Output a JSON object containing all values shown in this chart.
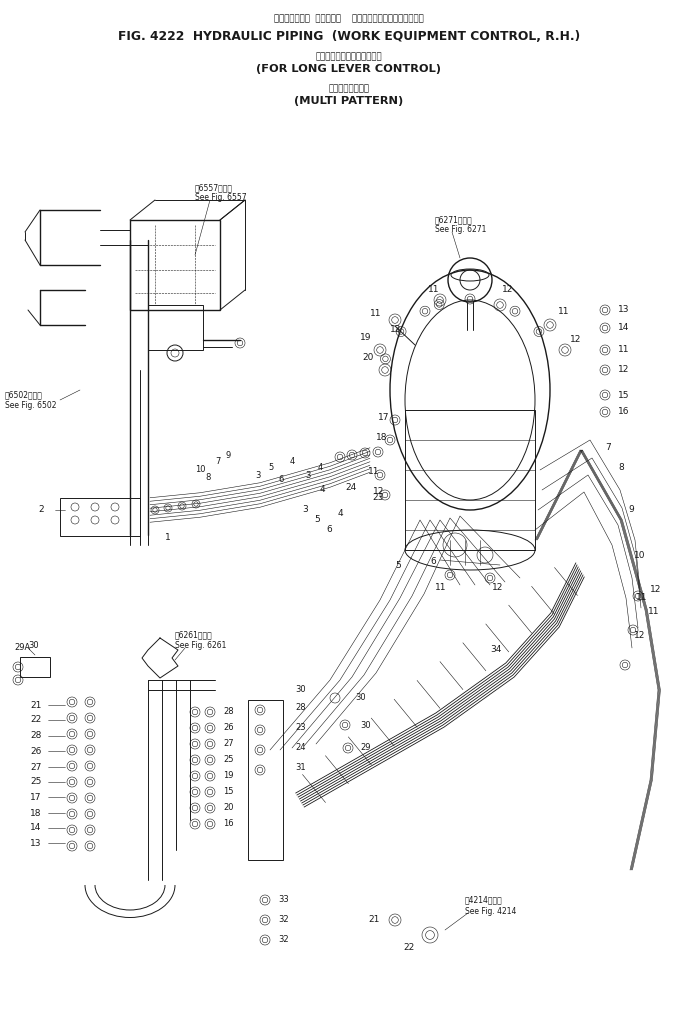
{
  "title_line1_jp": "ハイドロリック  パイピング    作　業　機　コントロール，右",
  "title_line1_en": "FIG. 4222  HYDRAULIC PIPING  (WORK EQUIPMENT CONTROL, R.H.)",
  "title_line2_jp": "ロングレバーコントロール用",
  "title_line2_en": "(FOR LONG LEVER CONTROL)",
  "title_line3_jp": "マルチ　パターン",
  "title_line3_en": "(MULTI PATTERN)",
  "bg_color": "#ffffff",
  "line_color": "#1a1a1a",
  "fig_width": 6.99,
  "fig_height": 10.23,
  "dpi": 100
}
